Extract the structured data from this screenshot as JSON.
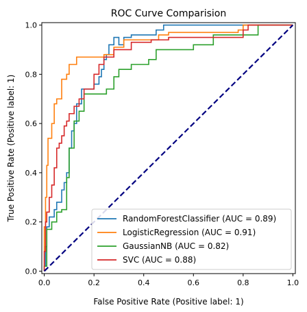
{
  "chart_data": {
    "type": "line",
    "title": "ROC Curve Comparision",
    "xlabel": "False Positive Rate (Positive label: 1)",
    "ylabel": "True Positive Rate (Positive label: 1)",
    "xlim": [
      -0.01,
      1.01
    ],
    "ylim": [
      -0.01,
      1.01
    ],
    "x_ticks": [
      "0.0",
      "0.2",
      "0.4",
      "0.6",
      "0.8",
      "1.0"
    ],
    "y_ticks": [
      "0.0",
      "0.2",
      "0.4",
      "0.6",
      "0.8",
      "1.0"
    ],
    "grid": false,
    "legend_position": "lower-right",
    "series": [
      {
        "name": "RandomForestClassifier (AUC = 0.89)",
        "color": "#1f77b4",
        "points": [
          [
            0,
            0
          ],
          [
            0,
            0.02
          ],
          [
            0.005,
            0.02
          ],
          [
            0.005,
            0.1
          ],
          [
            0.01,
            0.1
          ],
          [
            0.01,
            0.18
          ],
          [
            0.02,
            0.18
          ],
          [
            0.02,
            0.22
          ],
          [
            0.04,
            0.22
          ],
          [
            0.04,
            0.25
          ],
          [
            0.05,
            0.25
          ],
          [
            0.05,
            0.28
          ],
          [
            0.07,
            0.28
          ],
          [
            0.07,
            0.33
          ],
          [
            0.08,
            0.33
          ],
          [
            0.08,
            0.36
          ],
          [
            0.09,
            0.36
          ],
          [
            0.09,
            0.4
          ],
          [
            0.1,
            0.4
          ],
          [
            0.1,
            0.5
          ],
          [
            0.11,
            0.5
          ],
          [
            0.11,
            0.57
          ],
          [
            0.12,
            0.57
          ],
          [
            0.12,
            0.6
          ],
          [
            0.13,
            0.6
          ],
          [
            0.13,
            0.68
          ],
          [
            0.15,
            0.68
          ],
          [
            0.15,
            0.74
          ],
          [
            0.2,
            0.74
          ],
          [
            0.2,
            0.76
          ],
          [
            0.22,
            0.76
          ],
          [
            0.22,
            0.79
          ],
          [
            0.23,
            0.79
          ],
          [
            0.23,
            0.82
          ],
          [
            0.24,
            0.82
          ],
          [
            0.24,
            0.86
          ],
          [
            0.25,
            0.86
          ],
          [
            0.25,
            0.88
          ],
          [
            0.26,
            0.88
          ],
          [
            0.26,
            0.92
          ],
          [
            0.28,
            0.92
          ],
          [
            0.28,
            0.95
          ],
          [
            0.3,
            0.95
          ],
          [
            0.3,
            0.92
          ],
          [
            0.32,
            0.92
          ],
          [
            0.32,
            0.95
          ],
          [
            0.35,
            0.95
          ],
          [
            0.35,
            0.96
          ],
          [
            0.45,
            0.96
          ],
          [
            0.45,
            0.98
          ],
          [
            0.48,
            0.98
          ],
          [
            0.48,
            1.0
          ],
          [
            0.62,
            1.0
          ],
          [
            1.0,
            1.0
          ]
        ]
      },
      {
        "name": "LogisticRegression (AUC = 0.91)",
        "color": "#ff7f0e",
        "points": [
          [
            0,
            0
          ],
          [
            0,
            0.18
          ],
          [
            0.005,
            0.18
          ],
          [
            0.005,
            0.3
          ],
          [
            0.01,
            0.3
          ],
          [
            0.01,
            0.43
          ],
          [
            0.015,
            0.43
          ],
          [
            0.015,
            0.54
          ],
          [
            0.03,
            0.54
          ],
          [
            0.03,
            0.6
          ],
          [
            0.04,
            0.6
          ],
          [
            0.04,
            0.68
          ],
          [
            0.05,
            0.68
          ],
          [
            0.05,
            0.7
          ],
          [
            0.07,
            0.7
          ],
          [
            0.07,
            0.78
          ],
          [
            0.09,
            0.78
          ],
          [
            0.09,
            0.8
          ],
          [
            0.1,
            0.8
          ],
          [
            0.1,
            0.84
          ],
          [
            0.13,
            0.84
          ],
          [
            0.13,
            0.87
          ],
          [
            0.24,
            0.87
          ],
          [
            0.24,
            0.88
          ],
          [
            0.28,
            0.88
          ],
          [
            0.28,
            0.91
          ],
          [
            0.32,
            0.91
          ],
          [
            0.32,
            0.94
          ],
          [
            0.46,
            0.94
          ],
          [
            0.46,
            0.96
          ],
          [
            0.5,
            0.96
          ],
          [
            0.5,
            0.97
          ],
          [
            0.78,
            0.97
          ],
          [
            0.78,
            0.98
          ],
          [
            0.8,
            0.98
          ],
          [
            0.8,
            1.0
          ],
          [
            1.0,
            1.0
          ]
        ]
      },
      {
        "name": "GaussianNB (AUC = 0.82)",
        "color": "#2ca02c",
        "points": [
          [
            0,
            0
          ],
          [
            0,
            0.02
          ],
          [
            0.01,
            0.02
          ],
          [
            0.01,
            0.17
          ],
          [
            0.03,
            0.17
          ],
          [
            0.03,
            0.2
          ],
          [
            0.05,
            0.2
          ],
          [
            0.05,
            0.24
          ],
          [
            0.07,
            0.24
          ],
          [
            0.07,
            0.25
          ],
          [
            0.09,
            0.25
          ],
          [
            0.09,
            0.38
          ],
          [
            0.1,
            0.38
          ],
          [
            0.1,
            0.5
          ],
          [
            0.12,
            0.5
          ],
          [
            0.12,
            0.61
          ],
          [
            0.14,
            0.61
          ],
          [
            0.14,
            0.65
          ],
          [
            0.16,
            0.65
          ],
          [
            0.16,
            0.72
          ],
          [
            0.25,
            0.72
          ],
          [
            0.25,
            0.74
          ],
          [
            0.28,
            0.74
          ],
          [
            0.28,
            0.79
          ],
          [
            0.3,
            0.79
          ],
          [
            0.3,
            0.82
          ],
          [
            0.35,
            0.82
          ],
          [
            0.35,
            0.84
          ],
          [
            0.42,
            0.84
          ],
          [
            0.42,
            0.86
          ],
          [
            0.45,
            0.86
          ],
          [
            0.45,
            0.9
          ],
          [
            0.6,
            0.9
          ],
          [
            0.6,
            0.92
          ],
          [
            0.68,
            0.92
          ],
          [
            0.68,
            0.96
          ],
          [
            0.86,
            0.96
          ],
          [
            0.86,
            1.0
          ],
          [
            1.0,
            1.0
          ]
        ]
      },
      {
        "name": "SVC (AUC = 0.88)",
        "color": "#d62728",
        "points": [
          [
            0,
            0
          ],
          [
            0,
            0.08
          ],
          [
            0.005,
            0.08
          ],
          [
            0.005,
            0.2
          ],
          [
            0.01,
            0.2
          ],
          [
            0.01,
            0.24
          ],
          [
            0.02,
            0.24
          ],
          [
            0.02,
            0.3
          ],
          [
            0.03,
            0.3
          ],
          [
            0.03,
            0.35
          ],
          [
            0.04,
            0.35
          ],
          [
            0.04,
            0.42
          ],
          [
            0.05,
            0.42
          ],
          [
            0.05,
            0.5
          ],
          [
            0.06,
            0.5
          ],
          [
            0.06,
            0.52
          ],
          [
            0.07,
            0.52
          ],
          [
            0.07,
            0.55
          ],
          [
            0.08,
            0.55
          ],
          [
            0.08,
            0.59
          ],
          [
            0.09,
            0.59
          ],
          [
            0.09,
            0.61
          ],
          [
            0.1,
            0.61
          ],
          [
            0.1,
            0.64
          ],
          [
            0.12,
            0.64
          ],
          [
            0.12,
            0.67
          ],
          [
            0.14,
            0.67
          ],
          [
            0.14,
            0.7
          ],
          [
            0.16,
            0.7
          ],
          [
            0.16,
            0.74
          ],
          [
            0.2,
            0.74
          ],
          [
            0.2,
            0.8
          ],
          [
            0.22,
            0.8
          ],
          [
            0.22,
            0.84
          ],
          [
            0.24,
            0.84
          ],
          [
            0.24,
            0.87
          ],
          [
            0.28,
            0.87
          ],
          [
            0.28,
            0.9
          ],
          [
            0.35,
            0.9
          ],
          [
            0.35,
            0.93
          ],
          [
            0.43,
            0.93
          ],
          [
            0.43,
            0.94
          ],
          [
            0.5,
            0.94
          ],
          [
            0.5,
            0.95
          ],
          [
            0.8,
            0.95
          ],
          [
            0.8,
            0.98
          ],
          [
            0.82,
            0.98
          ],
          [
            0.82,
            1.0
          ],
          [
            1.0,
            1.0
          ]
        ]
      }
    ],
    "reference_line": {
      "points": [
        [
          0,
          0
        ],
        [
          1,
          1
        ]
      ],
      "color": "#000080"
    }
  }
}
